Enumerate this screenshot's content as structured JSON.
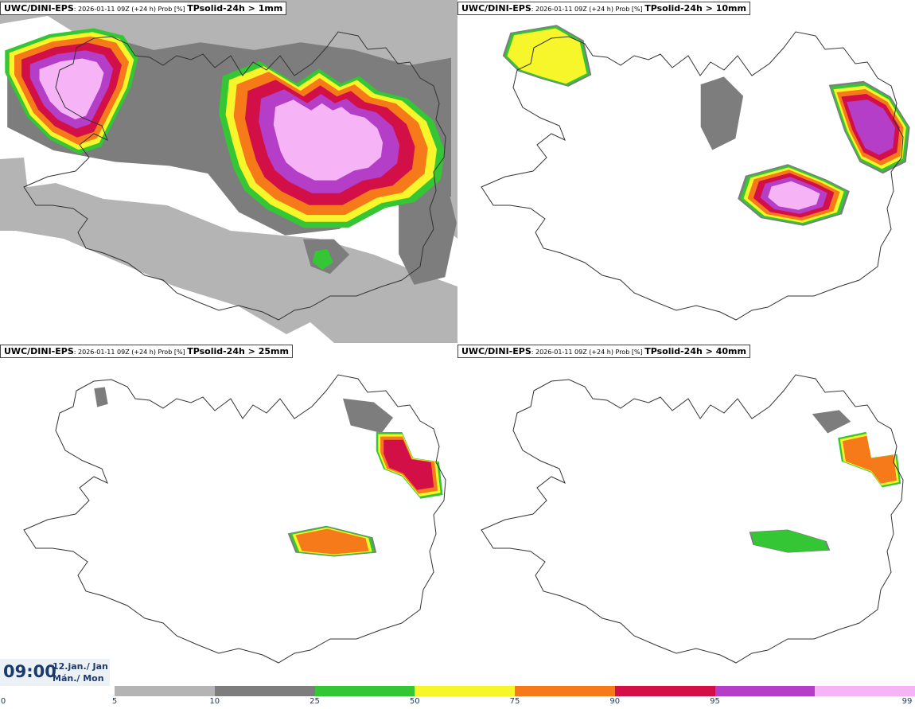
{
  "panels": [
    {
      "model": "UWC/DINI-EPS",
      "meta": ": 2026-01-11 09Z (+24 h) Prob [%] ",
      "field": "TPsolid-24h > 1mm",
      "zones": [
        {
          "level": "5",
          "shapes": [
            "uplands",
            "offshore",
            "east-sea",
            "south-sea",
            "west-sea"
          ]
        },
        {
          "level": "10",
          "shapes": [
            "north-band",
            "east-band",
            "south-band"
          ]
        },
        {
          "level": "25",
          "shapes": [
            "north-core",
            "westfjords",
            "south-spot"
          ]
        },
        {
          "level": "50",
          "shapes": [
            "north-core",
            "westfjords"
          ]
        },
        {
          "level": "75",
          "shapes": [
            "north-core",
            "westfjords"
          ]
        },
        {
          "level": "90",
          "shapes": [
            "north-core",
            "westfjords"
          ]
        },
        {
          "level": "95",
          "shapes": [
            "north-core",
            "westfjords"
          ]
        },
        {
          "level": "99",
          "shapes": [
            "north-core",
            "westfjords"
          ]
        }
      ]
    },
    {
      "model": "UWC/DINI-EPS",
      "meta": ": 2026-01-11 09Z (+24 h) Prob [%] ",
      "field": "TPsolid-24h > 10mm",
      "zones": [
        {
          "level": "10",
          "shapes": [
            "westfjords",
            "north-specks",
            "east",
            "central"
          ]
        },
        {
          "level": "25",
          "shapes": [
            "westfjords",
            "east",
            "central"
          ]
        },
        {
          "level": "50",
          "shapes": [
            "westfjords",
            "east",
            "central"
          ]
        },
        {
          "level": "75",
          "shapes": [
            "east",
            "central"
          ]
        },
        {
          "level": "90",
          "shapes": [
            "east",
            "central"
          ]
        },
        {
          "level": "95",
          "shapes": [
            "east",
            "central"
          ]
        },
        {
          "level": "99",
          "shapes": [
            "central"
          ]
        }
      ]
    },
    {
      "model": "UWC/DINI-EPS",
      "meta": ": 2026-01-11 09Z (+24 h) Prob [%] ",
      "field": "TPsolid-24h > 25mm",
      "zones": [
        {
          "level": "10",
          "shapes": [
            "northeast",
            "central",
            "westfjords"
          ]
        },
        {
          "level": "25",
          "shapes": [
            "east",
            "central"
          ]
        },
        {
          "level": "50",
          "shapes": [
            "east",
            "central"
          ]
        },
        {
          "level": "75",
          "shapes": [
            "east",
            "central"
          ]
        },
        {
          "level": "90",
          "shapes": [
            "east"
          ]
        }
      ]
    },
    {
      "model": "UWC/DINI-EPS",
      "meta": ": 2026-01-11 09Z (+24 h) Prob [%] ",
      "field": "TPsolid-24h > 40mm",
      "zones": [
        {
          "level": "10",
          "shapes": [
            "northeast",
            "central"
          ]
        },
        {
          "level": "25",
          "shapes": [
            "east",
            "central"
          ]
        },
        {
          "level": "50",
          "shapes": [
            "east"
          ]
        },
        {
          "level": "75",
          "shapes": [
            "east"
          ]
        }
      ]
    }
  ],
  "valid_time": {
    "clock": "09:00",
    "date_line1": "12.jan./ Jan",
    "date_line2": "Mán./ Mon"
  },
  "legend": {
    "ticks": [
      "0",
      "5",
      "10",
      "25",
      "50",
      "75",
      "90",
      "95",
      "99"
    ],
    "colors": {
      "5": "#b4b4b4",
      "10": "#7d7d7d",
      "25": "#34c634",
      "50": "#f6f62a",
      "75": "#f67a1a",
      "90": "#d20f46",
      "95": "#b43ec8",
      "99": "#f6b4f6"
    }
  },
  "coastline_color": "#333333"
}
